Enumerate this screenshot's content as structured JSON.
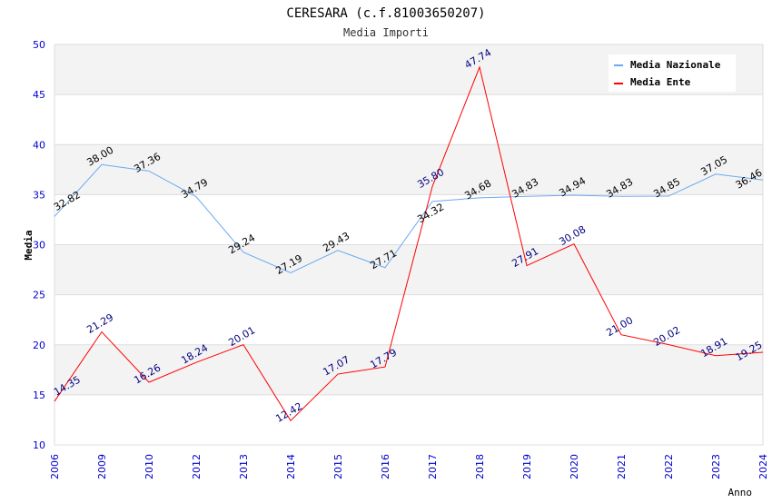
{
  "chart_data": {
    "type": "line",
    "title": "CERESARA (c.f.81003650207)",
    "subtitle": "Media Importi",
    "xlabel": "Anno",
    "ylabel": "Media",
    "ylim": [
      10,
      50
    ],
    "yticks": [
      10,
      15,
      20,
      25,
      30,
      35,
      40,
      45,
      50
    ],
    "categories": [
      "2006",
      "2009",
      "2010",
      "2012",
      "2013",
      "2014",
      "2015",
      "2016",
      "2017",
      "2018",
      "2019",
      "2020",
      "2021",
      "2022",
      "2023",
      "2024"
    ],
    "legend_position": "top-right",
    "series": [
      {
        "name": "Media Nazionale",
        "color": "#6aaaf0",
        "label_color": "#000000",
        "values": [
          32.82,
          38.0,
          37.36,
          34.79,
          29.24,
          27.19,
          29.43,
          27.71,
          34.32,
          34.68,
          34.83,
          34.94,
          34.83,
          34.85,
          37.05,
          36.46
        ]
      },
      {
        "name": "Media Ente",
        "color": "#ff0000",
        "label_color": "#000080",
        "values": [
          14.35,
          21.29,
          16.26,
          18.24,
          20.01,
          12.42,
          17.07,
          17.79,
          35.8,
          47.74,
          27.91,
          30.08,
          21.0,
          20.02,
          18.91,
          19.25
        ]
      }
    ]
  }
}
